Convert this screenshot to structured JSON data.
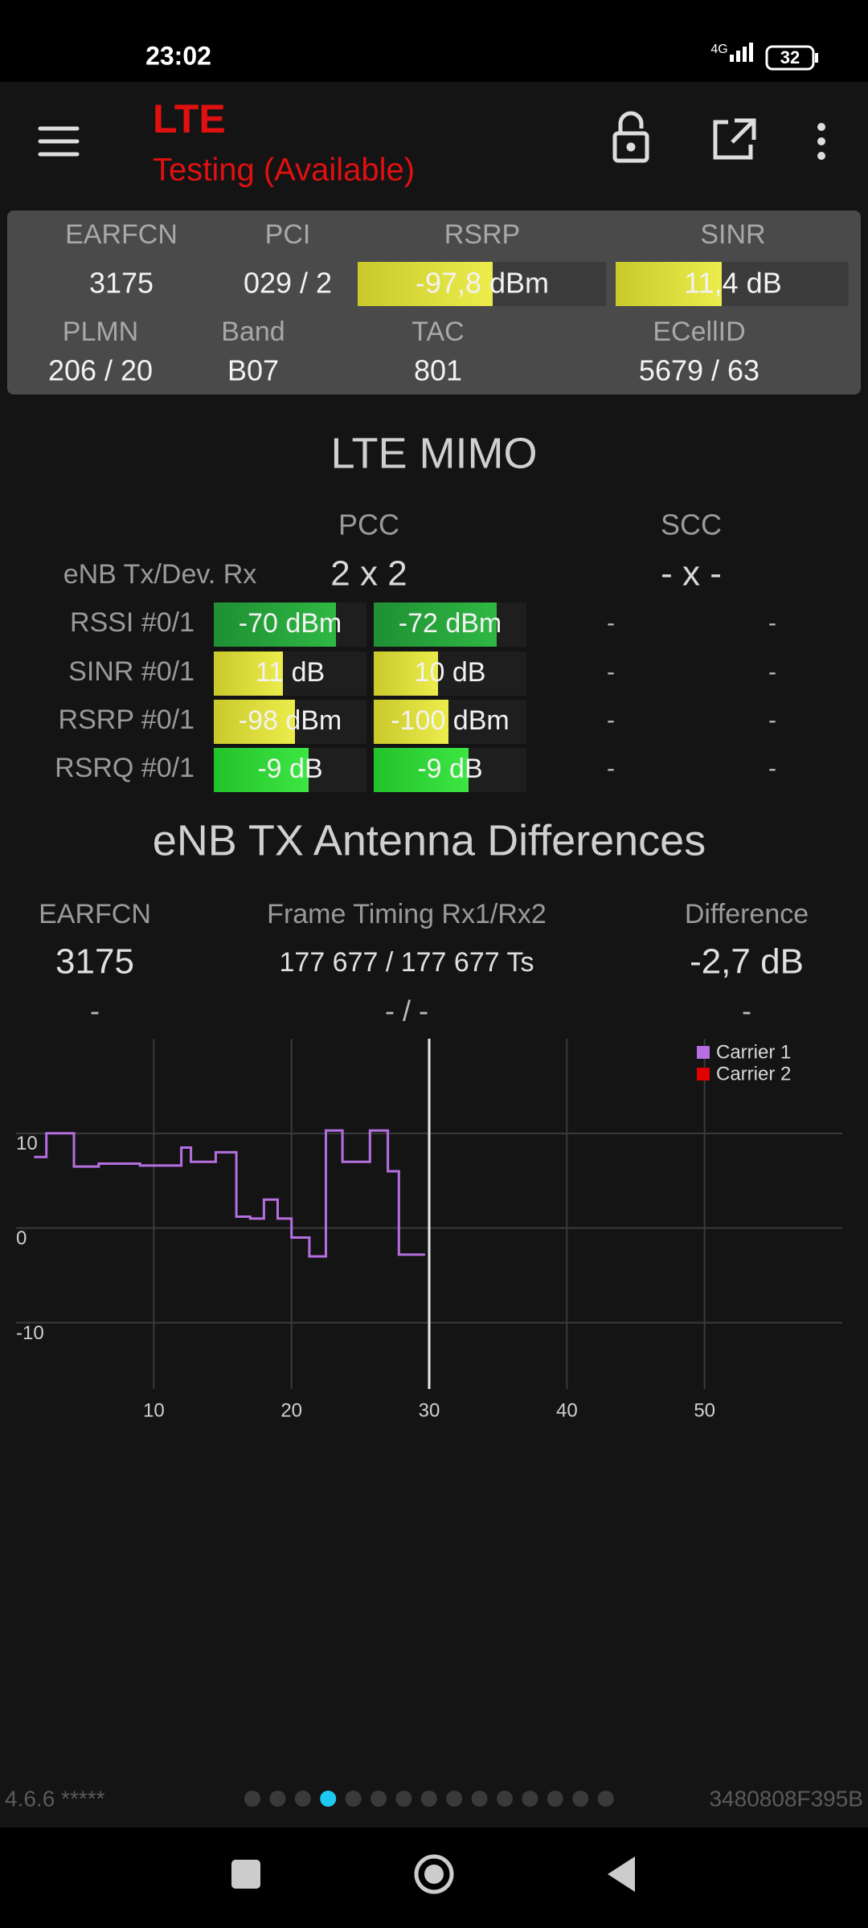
{
  "status_bar": {
    "time": "23:02",
    "network": "4G",
    "battery": "32"
  },
  "app_bar": {
    "title": "LTE",
    "subtitle": "Testing (Available)"
  },
  "cell_info": {
    "headers": [
      "EARFCN",
      "PCI",
      "RSRP",
      "SINR"
    ],
    "values": [
      "3175",
      "029 / 2",
      "-97,8 dBm",
      "11,4 dB"
    ],
    "headers2": [
      "PLMN",
      "Band",
      "TAC",
      "ECellID"
    ],
    "values2": [
      "206 / 20",
      "B07",
      "801",
      "5679 / 63"
    ]
  },
  "mimo": {
    "title": "LTE MIMO",
    "columns": [
      "PCC",
      "SCC"
    ],
    "config_label": "eNB Tx/Dev. Rx",
    "config": [
      "2 x 2",
      "- x -"
    ],
    "rows": [
      {
        "label": "RSSI #0/1",
        "pcc": [
          "-70 dBm",
          "-72 dBm"
        ],
        "scc": [
          "-",
          "-"
        ]
      },
      {
        "label": "SINR #0/1",
        "pcc": [
          "11 dB",
          "10 dB"
        ],
        "scc": [
          "-",
          "-"
        ]
      },
      {
        "label": "RSRP #0/1",
        "pcc": [
          "-98 dBm",
          "-100 dBm"
        ],
        "scc": [
          "-",
          "-"
        ]
      },
      {
        "label": "RSRQ #0/1",
        "pcc": [
          "-9 dB",
          "-9 dB"
        ],
        "scc": [
          "-",
          "-"
        ]
      }
    ]
  },
  "antenna": {
    "title": "eNB TX Antenna Differences",
    "headers": [
      "EARFCN",
      "Frame Timing Rx1/Rx2",
      "Difference"
    ],
    "values": [
      "3175",
      "177 677 / 177 677 Ts",
      "-2,7 dB"
    ],
    "values2": [
      "-",
      "- / -",
      "-"
    ]
  },
  "chart_data": {
    "type": "line",
    "series": [
      {
        "name": "Carrier 1",
        "color": "#b56fe0",
        "x": [
          1.3,
          2.2,
          2.2,
          4.2,
          4.2,
          6,
          6,
          9,
          9,
          12,
          12,
          12.7,
          12.7,
          14.5,
          14.5,
          16,
          16,
          17,
          17,
          18,
          18,
          19,
          19,
          20,
          20,
          21.3,
          21.3,
          22.5,
          22.5,
          23.7,
          23.7,
          25.7,
          25.7,
          27,
          27,
          27.8,
          27.8,
          29.7
        ],
        "values": [
          7.5,
          7.5,
          10,
          10,
          6.5,
          6.5,
          6.8,
          6.8,
          6.6,
          6.6,
          8.5,
          8.5,
          7,
          7,
          8,
          8,
          1.2,
          1.2,
          1,
          1,
          3,
          3,
          1,
          1,
          -1,
          -1,
          -3,
          -3,
          10.3,
          10.3,
          7,
          7,
          10.3,
          10.3,
          6,
          6,
          -2.8,
          -2.8
        ]
      },
      {
        "name": "Carrier 2",
        "color": "#e00000",
        "x": [],
        "values": []
      }
    ],
    "xlim": [
      0,
      60
    ],
    "ylim": [
      -17,
      20
    ],
    "xticks": [
      10,
      20,
      30,
      40,
      50
    ],
    "yticks": [
      -10,
      0,
      10
    ],
    "cursor_x": 30,
    "grid": true,
    "legend": "top-right"
  },
  "footer": {
    "version": "4.6.6 *****",
    "device_id": "3480808F395B",
    "page_count": 15,
    "active_page": 4
  }
}
